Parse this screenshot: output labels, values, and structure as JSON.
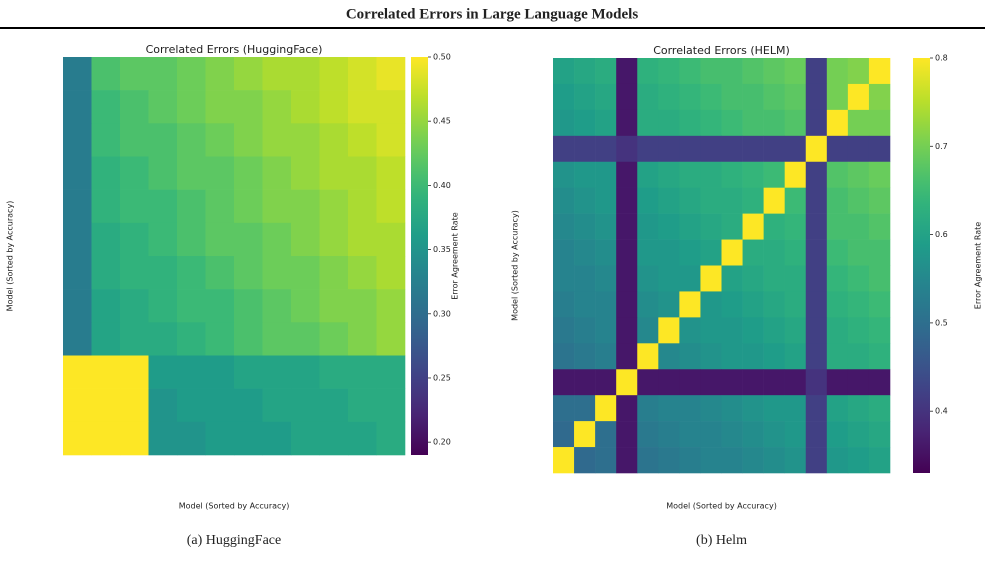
{
  "title": "Correlated Errors in Large Language Models",
  "chart_data": [
    {
      "type": "heatmap",
      "title": "Correlated Errors (HuggingFace)",
      "caption": "(a) HuggingFace",
      "xlabel": "Model (Sorted by Accuracy)",
      "ylabel": "Model (Sorted by Accuracy)",
      "colorbar_label": "Error Agreement Rate",
      "colormap": "viridis",
      "clim": [
        0.19,
        0.5
      ],
      "cticks": [
        {
          "value": 0.2,
          "label": "0.20"
        },
        {
          "value": 0.25,
          "label": "0.25"
        },
        {
          "value": 0.3,
          "label": "0.30"
        },
        {
          "value": 0.35,
          "label": "0.35"
        },
        {
          "value": 0.4,
          "label": "0.40"
        },
        {
          "value": 0.45,
          "label": "0.45"
        },
        {
          "value": 0.5,
          "label": "0.50"
        }
      ],
      "matrix": [
        [
          0.32,
          0.41,
          0.42,
          0.42,
          0.43,
          0.44,
          0.45,
          0.46,
          0.46,
          0.47,
          0.48,
          0.49
        ],
        [
          0.32,
          0.4,
          0.41,
          0.42,
          0.43,
          0.44,
          0.44,
          0.45,
          0.46,
          0.47,
          0.48,
          0.48
        ],
        [
          0.32,
          0.4,
          0.41,
          0.41,
          0.42,
          0.43,
          0.44,
          0.45,
          0.45,
          0.46,
          0.47,
          0.48
        ],
        [
          0.32,
          0.39,
          0.4,
          0.41,
          0.42,
          0.42,
          0.43,
          0.44,
          0.45,
          0.46,
          0.46,
          0.47
        ],
        [
          0.32,
          0.39,
          0.4,
          0.4,
          0.41,
          0.42,
          0.43,
          0.44,
          0.44,
          0.45,
          0.46,
          0.47
        ],
        [
          0.32,
          0.38,
          0.39,
          0.4,
          0.41,
          0.42,
          0.42,
          0.43,
          0.44,
          0.45,
          0.46,
          0.46
        ],
        [
          0.32,
          0.38,
          0.39,
          0.39,
          0.4,
          0.41,
          0.42,
          0.43,
          0.43,
          0.44,
          0.45,
          0.46
        ],
        [
          0.32,
          0.37,
          0.38,
          0.39,
          0.4,
          0.4,
          0.41,
          0.42,
          0.43,
          0.44,
          0.44,
          0.45
        ],
        [
          0.32,
          0.37,
          0.38,
          0.38,
          0.39,
          0.4,
          0.41,
          0.42,
          0.42,
          0.43,
          0.44,
          0.45
        ],
        [
          0.5,
          0.5,
          0.5,
          0.36,
          0.36,
          0.36,
          0.37,
          0.37,
          0.37,
          0.38,
          0.38,
          0.38
        ],
        [
          0.5,
          0.5,
          0.5,
          0.35,
          0.36,
          0.36,
          0.36,
          0.37,
          0.37,
          0.37,
          0.38,
          0.38
        ],
        [
          0.5,
          0.5,
          0.5,
          0.35,
          0.35,
          0.36,
          0.36,
          0.36,
          0.37,
          0.37,
          0.37,
          0.38
        ]
      ]
    },
    {
      "type": "heatmap",
      "title": "Correlated Errors (HELM)",
      "caption": "(b) Helm",
      "xlabel": "Model (Sorted by Accuracy)",
      "ylabel": "Model (Sorted by Accuracy)",
      "colorbar_label": "Error Agreement Rate",
      "colormap": "viridis",
      "clim": [
        0.33,
        0.8
      ],
      "cticks": [
        0.4,
        0.5,
        0.6,
        0.7,
        0.8
      ],
      "matrix": [
        [
          0.6,
          0.61,
          0.62,
          0.36,
          0.63,
          0.64,
          0.65,
          0.66,
          0.66,
          0.67,
          0.68,
          0.69,
          0.42,
          0.7,
          0.71,
          0.8
        ],
        [
          0.59,
          0.6,
          0.61,
          0.36,
          0.62,
          0.63,
          0.64,
          0.65,
          0.66,
          0.66,
          0.67,
          0.68,
          0.42,
          0.7,
          0.8,
          0.71
        ],
        [
          0.58,
          0.59,
          0.6,
          0.36,
          0.62,
          0.62,
          0.63,
          0.64,
          0.65,
          0.66,
          0.66,
          0.67,
          0.42,
          0.8,
          0.7,
          0.7
        ],
        [
          0.42,
          0.42,
          0.42,
          0.4,
          0.42,
          0.42,
          0.42,
          0.42,
          0.42,
          0.42,
          0.42,
          0.42,
          0.8,
          0.42,
          0.42,
          0.42
        ],
        [
          0.57,
          0.58,
          0.58,
          0.36,
          0.6,
          0.61,
          0.62,
          0.62,
          0.63,
          0.64,
          0.65,
          0.8,
          0.42,
          0.67,
          0.68,
          0.69
        ],
        [
          0.56,
          0.57,
          0.58,
          0.36,
          0.59,
          0.6,
          0.61,
          0.62,
          0.62,
          0.63,
          0.8,
          0.65,
          0.42,
          0.66,
          0.67,
          0.68
        ],
        [
          0.55,
          0.56,
          0.57,
          0.36,
          0.58,
          0.59,
          0.6,
          0.61,
          0.62,
          0.8,
          0.63,
          0.64,
          0.42,
          0.66,
          0.66,
          0.67
        ],
        [
          0.54,
          0.55,
          0.56,
          0.36,
          0.58,
          0.58,
          0.59,
          0.6,
          0.8,
          0.62,
          0.62,
          0.63,
          0.42,
          0.65,
          0.66,
          0.66
        ],
        [
          0.54,
          0.54,
          0.55,
          0.36,
          0.57,
          0.58,
          0.58,
          0.8,
          0.6,
          0.61,
          0.62,
          0.62,
          0.42,
          0.64,
          0.65,
          0.66
        ],
        [
          0.53,
          0.54,
          0.54,
          0.36,
          0.56,
          0.57,
          0.8,
          0.58,
          0.59,
          0.6,
          0.61,
          0.62,
          0.42,
          0.63,
          0.64,
          0.65
        ],
        [
          0.52,
          0.53,
          0.54,
          0.36,
          0.55,
          0.8,
          0.57,
          0.58,
          0.58,
          0.59,
          0.6,
          0.61,
          0.42,
          0.62,
          0.63,
          0.64
        ],
        [
          0.51,
          0.52,
          0.53,
          0.36,
          0.8,
          0.55,
          0.56,
          0.57,
          0.58,
          0.58,
          0.59,
          0.6,
          0.42,
          0.62,
          0.62,
          0.63
        ],
        [
          0.36,
          0.36,
          0.36,
          0.8,
          0.36,
          0.36,
          0.36,
          0.36,
          0.36,
          0.36,
          0.36,
          0.36,
          0.4,
          0.36,
          0.36,
          0.36
        ],
        [
          0.5,
          0.5,
          0.8,
          0.36,
          0.53,
          0.54,
          0.54,
          0.55,
          0.56,
          0.57,
          0.58,
          0.58,
          0.42,
          0.6,
          0.61,
          0.62
        ],
        [
          0.49,
          0.8,
          0.5,
          0.36,
          0.52,
          0.53,
          0.54,
          0.54,
          0.55,
          0.56,
          0.57,
          0.58,
          0.42,
          0.59,
          0.6,
          0.61
        ],
        [
          0.8,
          0.49,
          0.5,
          0.36,
          0.51,
          0.52,
          0.53,
          0.54,
          0.54,
          0.55,
          0.56,
          0.57,
          0.42,
          0.58,
          0.59,
          0.6
        ]
      ]
    }
  ]
}
